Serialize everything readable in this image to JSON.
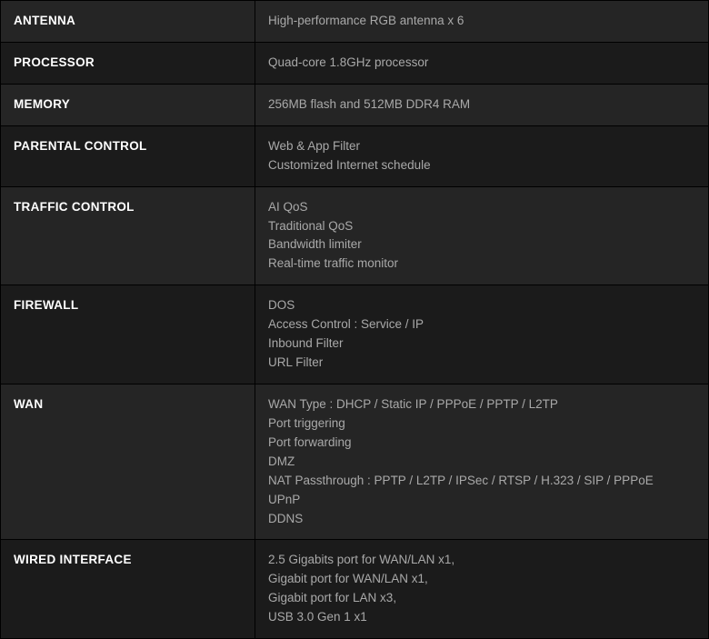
{
  "specs": {
    "rows": [
      {
        "label": "ANTENNA",
        "alt": true,
        "lines": [
          "High-performance RGB antenna x 6"
        ]
      },
      {
        "label": "PROCESSOR",
        "alt": false,
        "lines": [
          "Quad-core 1.8GHz processor"
        ]
      },
      {
        "label": "MEMORY",
        "alt": true,
        "lines": [
          "256MB flash and 512MB DDR4 RAM"
        ]
      },
      {
        "label": "PARENTAL CONTROL",
        "alt": false,
        "lines": [
          "Web & App Filter",
          "Customized Internet schedule"
        ]
      },
      {
        "label": "TRAFFIC CONTROL",
        "alt": true,
        "lines": [
          "AI QoS",
          "Traditional QoS",
          "Bandwidth limiter",
          "Real-time traffic monitor"
        ]
      },
      {
        "label": "FIREWALL",
        "alt": false,
        "lines": [
          "DOS",
          "Access Control : Service / IP",
          "Inbound Filter",
          "URL Filter"
        ]
      },
      {
        "label": "WAN",
        "alt": true,
        "lines": [
          "WAN Type : DHCP / Static IP / PPPoE / PPTP / L2TP",
          "Port triggering",
          "Port forwarding",
          "DMZ",
          "NAT Passthrough : PPTP / L2TP / IPSec / RTSP / H.323 / SIP / PPPoE",
          "UPnP",
          "DDNS"
        ]
      },
      {
        "label": "WIRED INTERFACE",
        "alt": false,
        "lines": [
          "2.5 Gigabits port for WAN/LAN x1,",
          "Gigabit port for WAN/LAN x1,",
          "Gigabit port for LAN x3,",
          "USB 3.0 Gen 1 x1"
        ]
      }
    ]
  },
  "styling": {
    "background_color": "#000000",
    "row_bg": "#1b1b1b",
    "row_bg_alt": "#252525",
    "label_color": "#ffffff",
    "value_color": "#a9a9a9",
    "border_color": "#000000",
    "font_family": "Segoe UI, Arial, sans-serif",
    "label_fontsize": 13.5,
    "value_fontsize": 13.5,
    "label_fontweight": 600,
    "value_fontweight": 400,
    "cell_padding": "12px 14px",
    "label_col_width": 280,
    "line_height": 1.55
  }
}
